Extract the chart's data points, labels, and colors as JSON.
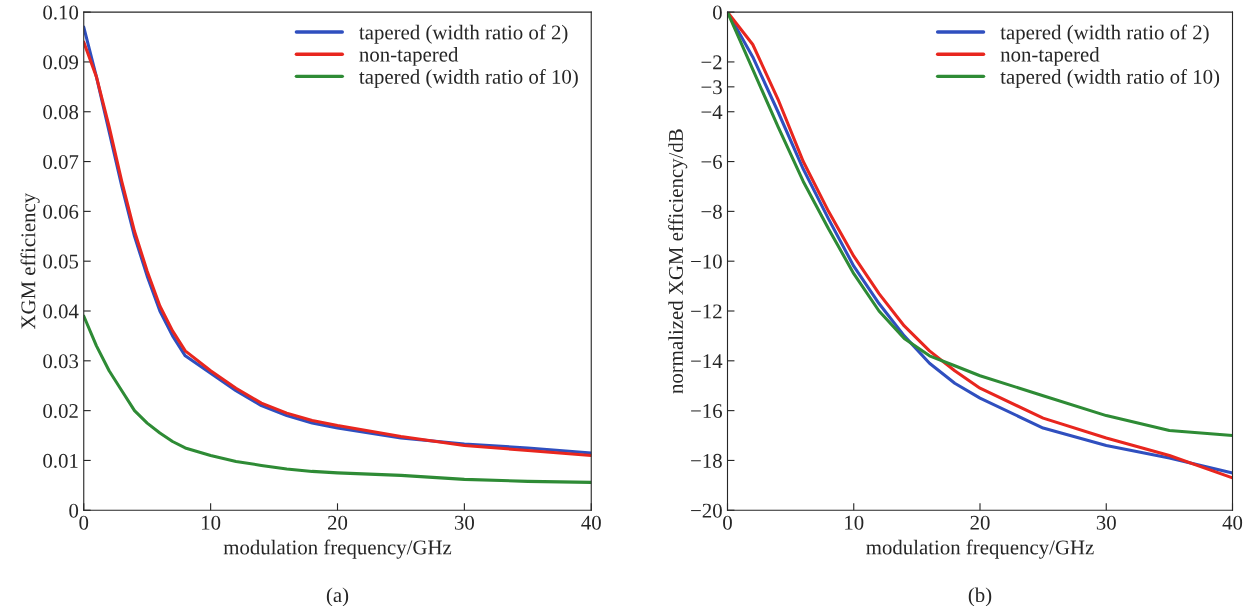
{
  "chart_data": [
    {
      "type": "line",
      "xlabel": "modulation frequency/GHz",
      "ylabel": "XGM efficiency",
      "annotations": [
        "(a)"
      ],
      "x": [
        0,
        1,
        2,
        3,
        4,
        5,
        6,
        7,
        8,
        10,
        12,
        14,
        16,
        18,
        20,
        25,
        30,
        35,
        40
      ],
      "xlim": [
        0,
        40
      ],
      "xticks": [
        0,
        10,
        20,
        30,
        40
      ],
      "ylim": [
        0,
        0.1
      ],
      "yticks": [
        0,
        0.01,
        0.02,
        0.03,
        0.04,
        0.05,
        0.06,
        0.07,
        0.08,
        0.09,
        {
          "value": 0.1,
          "label": "0.10"
        }
      ],
      "legend": "top right",
      "line_style": "solid",
      "series": [
        {
          "name": "tapered (width ratio of 2)",
          "color": "#2f4fbf",
          "values": [
            0.097,
            0.087,
            0.076,
            0.065,
            0.055,
            0.047,
            0.04,
            0.035,
            0.031,
            0.0275,
            0.024,
            0.021,
            0.019,
            0.0175,
            0.0165,
            0.0145,
            0.0133,
            0.0125,
            0.0115
          ]
        },
        {
          "name": "non-tapered",
          "color": "#e8261e",
          "values": [
            0.094,
            0.087,
            0.077,
            0.066,
            0.056,
            0.048,
            0.041,
            0.036,
            0.032,
            0.028,
            0.0245,
            0.0215,
            0.0195,
            0.018,
            0.017,
            0.0148,
            0.013,
            0.012,
            0.011
          ]
        },
        {
          "name": "tapered (width ratio of 10)",
          "color": "#2e8b35",
          "values": [
            0.039,
            0.033,
            0.028,
            0.024,
            0.02,
            0.0175,
            0.0155,
            0.0138,
            0.0125,
            0.011,
            0.0098,
            0.009,
            0.0083,
            0.0078,
            0.0075,
            0.007,
            0.0062,
            0.0058,
            0.0056
          ]
        }
      ]
    },
    {
      "type": "line",
      "xlabel": "modulation frequency/GHz",
      "ylabel": "normalized XGM efficiency/dB",
      "annotations": [
        "(b)"
      ],
      "x": [
        0,
        2,
        4,
        6,
        8,
        10,
        12,
        14,
        16,
        18,
        20,
        25,
        30,
        35,
        40
      ],
      "xlim": [
        0,
        40
      ],
      "xticks": [
        0,
        10,
        20,
        30,
        40
      ],
      "ylim": [
        -20,
        0
      ],
      "yticks": [
        0,
        {
          "value": -2,
          "label": "−2"
        },
        {
          "value": -3,
          "label": "−3"
        },
        {
          "value": -4,
          "label": "−4"
        },
        {
          "value": -6,
          "label": "−6"
        },
        {
          "value": -8,
          "label": "−8"
        },
        {
          "value": -10,
          "label": "−10"
        },
        {
          "value": -12,
          "label": "−12"
        },
        {
          "value": -14,
          "label": "−14"
        },
        {
          "value": -16,
          "label": "−16"
        },
        {
          "value": -18,
          "label": "−18"
        },
        {
          "value": -20,
          "label": "−20"
        }
      ],
      "legend": "top right",
      "line_style": "solid",
      "series": [
        {
          "name": "tapered (width ratio of 2)",
          "color": "#2f4fbf",
          "values": [
            0,
            -1.8,
            -4,
            -6.3,
            -8.3,
            -10.2,
            -11.7,
            -13,
            -14.1,
            -14.9,
            -15.5,
            -16.7,
            -17.4,
            -17.9,
            -18.5
          ]
        },
        {
          "name": "non-tapered",
          "color": "#e8261e",
          "values": [
            0,
            -1.3,
            -3.5,
            -6.0,
            -8.0,
            -9.8,
            -11.3,
            -12.6,
            -13.6,
            -14.4,
            -15.1,
            -16.3,
            -17.1,
            -17.8,
            -18.7
          ]
        },
        {
          "name": "tapered (width ratio of 10)",
          "color": "#2e8b35",
          "values": [
            0,
            -2.3,
            -4.6,
            -6.8,
            -8.7,
            -10.5,
            -12.0,
            -13.1,
            -13.8,
            -14.2,
            -14.6,
            -15.4,
            -16.2,
            -16.8,
            -17.0
          ]
        }
      ]
    }
  ]
}
